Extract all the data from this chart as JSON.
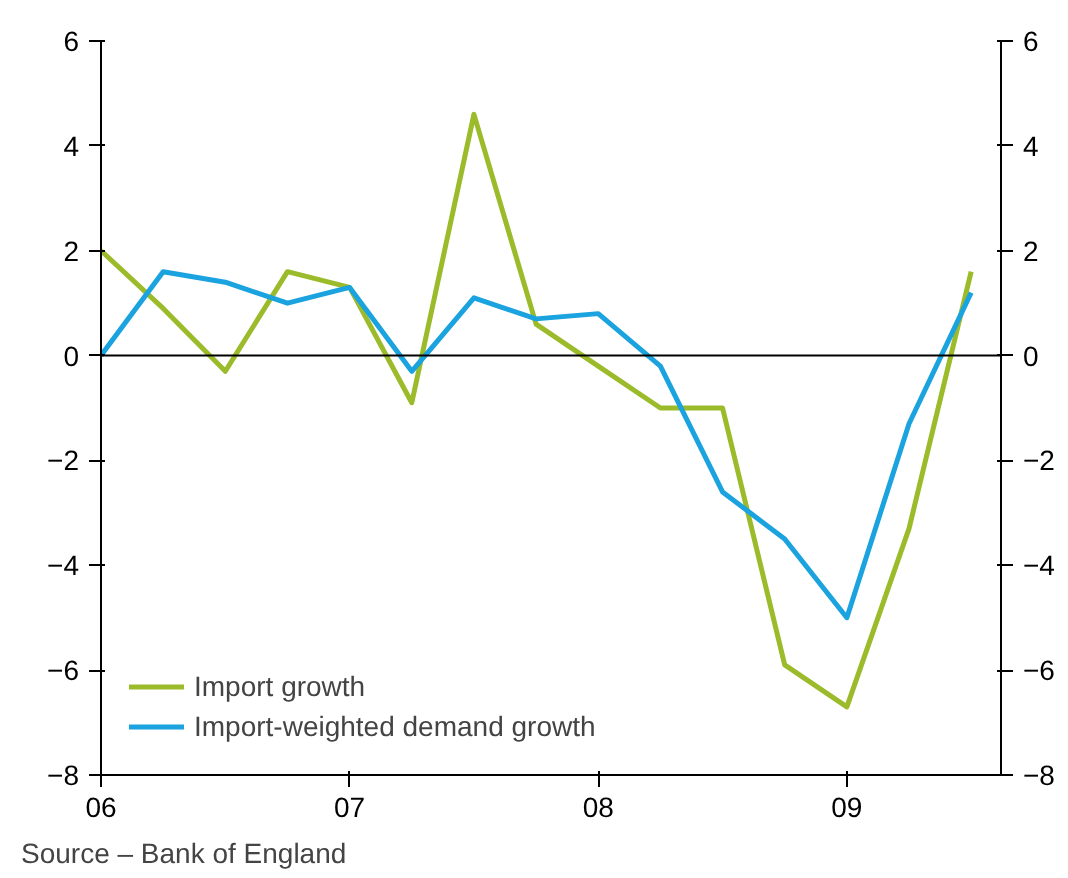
{
  "chart_data": {
    "type": "line",
    "x": [
      2006.0,
      2006.25,
      2006.5,
      2006.75,
      2007.0,
      2007.25,
      2007.5,
      2007.75,
      2008.0,
      2008.25,
      2008.5,
      2008.75,
      2009.0,
      2009.25,
      2009.5
    ],
    "series": [
      {
        "name": "Import growth",
        "color": "#9bbb2a",
        "values": [
          2.0,
          0.9,
          -0.3,
          1.6,
          1.3,
          -0.9,
          4.6,
          0.6,
          -0.2,
          -1.0,
          -1.0,
          -5.9,
          -6.7,
          -3.3,
          1.6
        ]
      },
      {
        "name": "Import-weighted demand growth",
        "color": "#1aa3de",
        "values": [
          0.0,
          1.6,
          1.4,
          1.0,
          1.3,
          -0.3,
          1.1,
          0.7,
          0.8,
          -0.2,
          -2.6,
          -3.5,
          -5.0,
          -1.3,
          1.2
        ]
      }
    ],
    "xlim": [
      2006,
      2009.62
    ],
    "xticks": [
      {
        "value": 2006,
        "label": "06"
      },
      {
        "value": 2007,
        "label": "07"
      },
      {
        "value": 2008,
        "label": "08"
      },
      {
        "value": 2009,
        "label": "09"
      }
    ],
    "ylim": [
      -8,
      6
    ],
    "yticks": [
      -8,
      -6,
      -4,
      -2,
      0,
      2,
      4,
      6
    ],
    "y2lim": [
      -8,
      6
    ],
    "y2ticks": [
      -8,
      -6,
      -4,
      -2,
      0,
      2,
      4,
      6
    ],
    "ref_lines": [
      {
        "axis": "y",
        "value": 0,
        "color": "#000000"
      }
    ],
    "annotations": [
      "Source – Bank of England"
    ],
    "legend": "bottom left",
    "grid": false,
    "marker": "none",
    "line_style": "solid"
  }
}
